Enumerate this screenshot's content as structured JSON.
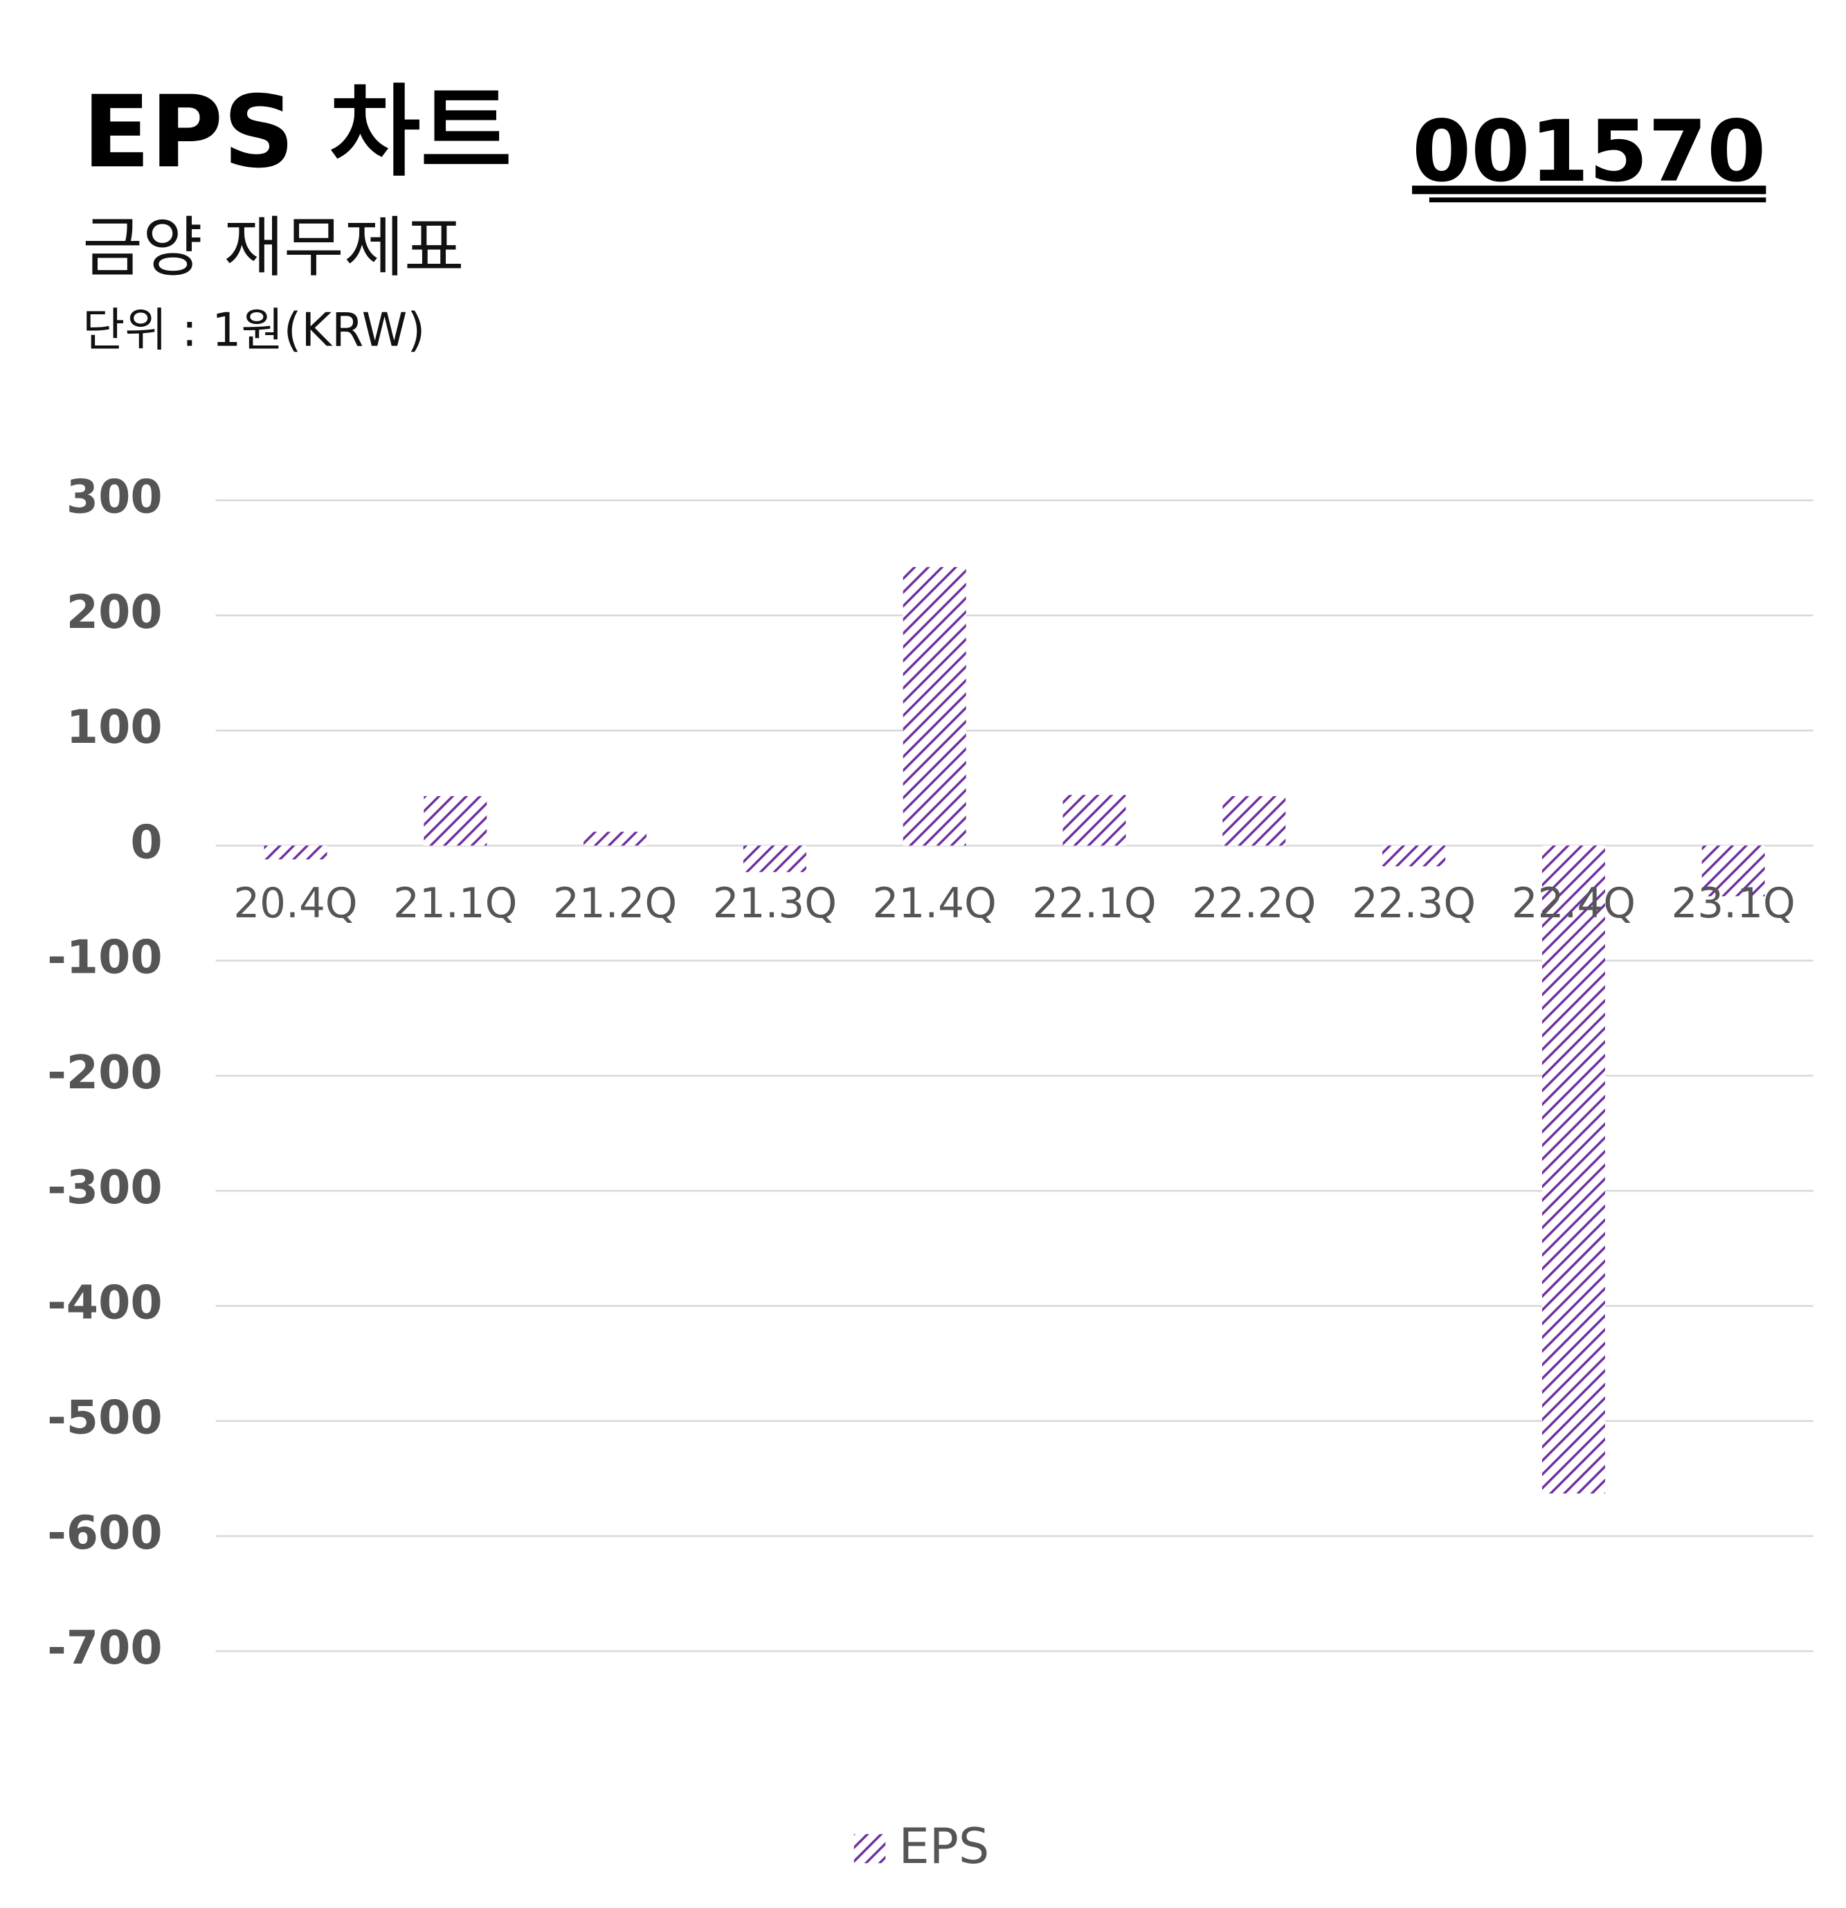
{
  "title": "EPS 차트",
  "subtitle": "금양 재무제표",
  "unit": "단위 : 1원(KRW)",
  "code": "001570",
  "chart_data": {
    "type": "bar",
    "categories": [
      "20.4Q",
      "21.1Q",
      "21.2Q",
      "21.3Q",
      "21.4Q",
      "22.1Q",
      "22.2Q",
      "22.3Q",
      "22.4Q",
      "23.1Q"
    ],
    "series": [
      {
        "name": "EPS",
        "color": "#7030a0",
        "values": [
          -12,
          43,
          12,
          -23,
          242,
          44,
          43,
          -18,
          -563,
          -44
        ]
      }
    ],
    "ylim": [
      -700,
      300
    ],
    "yticks": [
      300,
      200,
      100,
      0,
      -100,
      -200,
      -300,
      -400,
      -500,
      -600,
      -700
    ],
    "grid": true,
    "legend": "bottom",
    "pattern": "hatch"
  }
}
